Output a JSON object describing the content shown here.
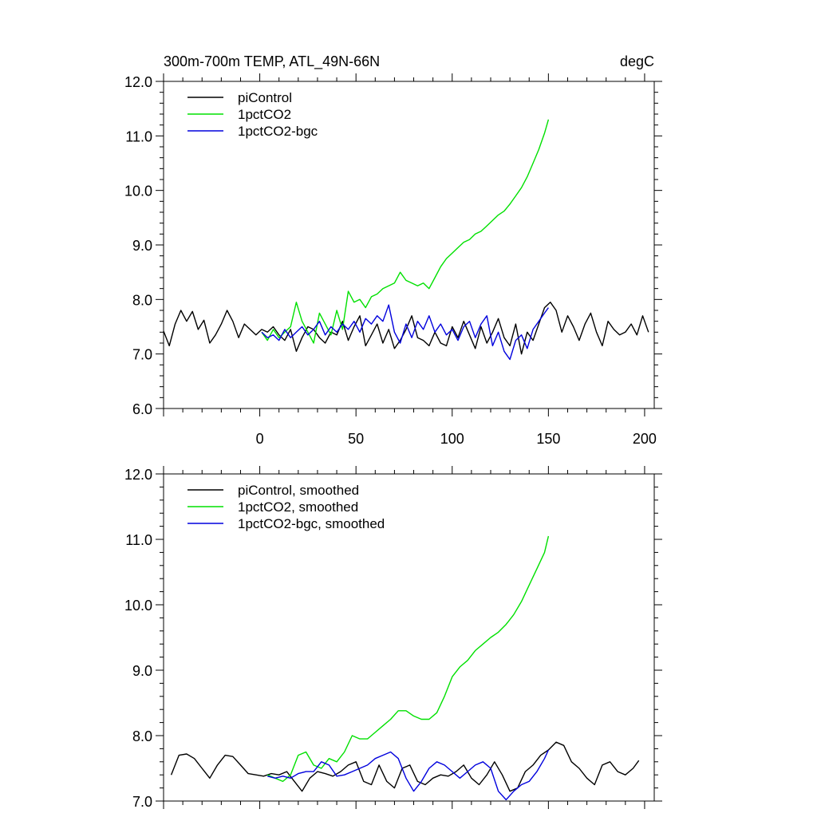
{
  "title_left": "300m-700m TEMP, ATL_49N-66N",
  "title_right": "degC",
  "chart_data": [
    {
      "type": "line",
      "panel": "top",
      "xlim": [
        -50,
        205
      ],
      "ylim": [
        6.0,
        12.0
      ],
      "yticks": [
        "6.0",
        "7.0",
        "8.0",
        "9.0",
        "10.0",
        "11.0",
        "12.0"
      ],
      "xticks": [
        "0",
        "50",
        "100",
        "150",
        "200"
      ],
      "legend_position": "top-left",
      "series": [
        {
          "name": "piControl",
          "color": "#000000",
          "x": [
            -50,
            -47,
            -44,
            -41,
            -38,
            -35,
            -32,
            -29,
            -26,
            -23,
            -20,
            -17,
            -14,
            -11,
            -8,
            -5,
            -2,
            1,
            4,
            7,
            10,
            13,
            16,
            19,
            22,
            25,
            28,
            31,
            34,
            37,
            40,
            43,
            46,
            49,
            52,
            55,
            58,
            61,
            64,
            67,
            70,
            73,
            76,
            79,
            82,
            85,
            88,
            91,
            94,
            97,
            100,
            103,
            106,
            109,
            112,
            115,
            118,
            121,
            124,
            127,
            130,
            133,
            136,
            139,
            142,
            145,
            148,
            151,
            154,
            157,
            160,
            163,
            166,
            169,
            172,
            175,
            178,
            181,
            184,
            187,
            190,
            193,
            196,
            199,
            202
          ],
          "values": [
            7.42,
            7.15,
            7.55,
            7.8,
            7.6,
            7.78,
            7.45,
            7.62,
            7.2,
            7.35,
            7.55,
            7.8,
            7.6,
            7.3,
            7.55,
            7.45,
            7.35,
            7.45,
            7.4,
            7.5,
            7.35,
            7.25,
            7.45,
            7.05,
            7.3,
            7.5,
            7.45,
            7.3,
            7.2,
            7.4,
            7.35,
            7.6,
            7.25,
            7.5,
            7.7,
            7.15,
            7.35,
            7.55,
            7.2,
            7.45,
            7.1,
            7.25,
            7.45,
            7.7,
            7.3,
            7.25,
            7.15,
            7.4,
            7.2,
            7.15,
            7.5,
            7.3,
            7.6,
            7.35,
            7.1,
            7.5,
            7.2,
            7.4,
            7.65,
            7.3,
            7.15,
            7.55,
            7.0,
            7.4,
            7.25,
            7.55,
            7.85,
            7.95,
            7.8,
            7.4,
            7.7,
            7.5,
            7.25,
            7.55,
            7.75,
            7.4,
            7.15,
            7.6,
            7.45,
            7.35,
            7.4,
            7.55,
            7.35,
            7.7,
            7.4
          ]
        },
        {
          "name": "1pctCO2",
          "color": "#00e000",
          "x": [
            1,
            4,
            7,
            10,
            13,
            16,
            19,
            22,
            25,
            28,
            31,
            34,
            37,
            40,
            43,
            46,
            49,
            52,
            55,
            58,
            61,
            64,
            67,
            70,
            73,
            76,
            79,
            82,
            85,
            88,
            91,
            94,
            97,
            100,
            103,
            106,
            109,
            112,
            115,
            118,
            121,
            124,
            127,
            130,
            133,
            136,
            139,
            142,
            145,
            148,
            150
          ],
          "values": [
            7.4,
            7.25,
            7.45,
            7.3,
            7.4,
            7.5,
            7.95,
            7.6,
            7.4,
            7.2,
            7.75,
            7.55,
            7.35,
            7.8,
            7.45,
            8.15,
            7.95,
            8.0,
            7.85,
            8.05,
            8.1,
            8.2,
            8.25,
            8.3,
            8.5,
            8.35,
            8.3,
            8.25,
            8.3,
            8.2,
            8.4,
            8.6,
            8.75,
            8.85,
            8.95,
            9.05,
            9.1,
            9.2,
            9.25,
            9.35,
            9.45,
            9.55,
            9.62,
            9.75,
            9.9,
            10.05,
            10.25,
            10.5,
            10.75,
            11.05,
            11.3
          ]
        },
        {
          "name": "1pctCO2-bgc",
          "color": "#0000dd",
          "x": [
            1,
            4,
            7,
            10,
            13,
            16,
            19,
            22,
            25,
            28,
            31,
            34,
            37,
            40,
            43,
            46,
            49,
            52,
            55,
            58,
            61,
            64,
            67,
            70,
            73,
            76,
            79,
            82,
            85,
            88,
            91,
            94,
            97,
            100,
            103,
            106,
            109,
            112,
            115,
            118,
            121,
            124,
            127,
            130,
            133,
            136,
            139,
            142,
            145,
            148,
            150
          ],
          "values": [
            7.4,
            7.3,
            7.35,
            7.25,
            7.45,
            7.3,
            7.4,
            7.5,
            7.35,
            7.45,
            7.6,
            7.35,
            7.5,
            7.4,
            7.55,
            7.45,
            7.6,
            7.4,
            7.65,
            7.55,
            7.7,
            7.6,
            7.9,
            7.4,
            7.2,
            7.55,
            7.3,
            7.6,
            7.45,
            7.7,
            7.4,
            7.55,
            7.35,
            7.45,
            7.25,
            7.5,
            7.6,
            7.3,
            7.55,
            7.7,
            7.15,
            7.4,
            7.05,
            6.9,
            7.25,
            7.35,
            7.1,
            7.45,
            7.6,
            7.75,
            7.85
          ]
        }
      ]
    },
    {
      "type": "line",
      "panel": "bottom",
      "xlim": [
        -50,
        205
      ],
      "ylim": [
        7.0,
        12.0
      ],
      "yticks": [
        "7.0",
        "8.0",
        "9.0",
        "10.0",
        "11.0",
        "12.0"
      ],
      "legend_position": "top-left",
      "series": [
        {
          "name": "piControl, smoothed",
          "color": "#000000",
          "x": [
            -46,
            -42,
            -38,
            -34,
            -30,
            -26,
            -22,
            -18,
            -14,
            -10,
            -6,
            -2,
            2,
            6,
            10,
            14,
            18,
            22,
            26,
            30,
            34,
            38,
            42,
            46,
            50,
            54,
            58,
            62,
            66,
            70,
            74,
            78,
            82,
            86,
            90,
            94,
            98,
            102,
            106,
            110,
            114,
            118,
            122,
            126,
            130,
            134,
            138,
            142,
            146,
            150,
            154,
            158,
            162,
            166,
            170,
            174,
            178,
            182,
            186,
            190,
            194,
            197
          ],
          "values": [
            7.4,
            7.7,
            7.72,
            7.65,
            7.5,
            7.35,
            7.55,
            7.7,
            7.68,
            7.55,
            7.42,
            7.4,
            7.38,
            7.42,
            7.4,
            7.45,
            7.3,
            7.15,
            7.35,
            7.45,
            7.42,
            7.38,
            7.45,
            7.55,
            7.6,
            7.3,
            7.25,
            7.55,
            7.3,
            7.2,
            7.5,
            7.55,
            7.3,
            7.25,
            7.35,
            7.4,
            7.38,
            7.45,
            7.55,
            7.35,
            7.25,
            7.4,
            7.6,
            7.4,
            7.15,
            7.2,
            7.45,
            7.55,
            7.7,
            7.78,
            7.9,
            7.85,
            7.6,
            7.5,
            7.35,
            7.25,
            7.55,
            7.6,
            7.45,
            7.4,
            7.5,
            7.62
          ]
        },
        {
          "name": "1pctCO2, smoothed",
          "color": "#00e000",
          "x": [
            4,
            8,
            12,
            16,
            20,
            24,
            28,
            32,
            36,
            40,
            44,
            48,
            52,
            56,
            60,
            64,
            68,
            72,
            76,
            80,
            84,
            88,
            92,
            96,
            100,
            104,
            108,
            112,
            116,
            120,
            124,
            128,
            132,
            136,
            140,
            144,
            148,
            150
          ],
          "values": [
            7.4,
            7.35,
            7.3,
            7.4,
            7.7,
            7.75,
            7.55,
            7.5,
            7.65,
            7.6,
            7.75,
            8.0,
            7.95,
            7.95,
            8.05,
            8.15,
            8.25,
            8.38,
            8.38,
            8.3,
            8.25,
            8.25,
            8.35,
            8.6,
            8.9,
            9.05,
            9.15,
            9.3,
            9.4,
            9.5,
            9.58,
            9.7,
            9.85,
            10.05,
            10.3,
            10.55,
            10.8,
            11.05
          ]
        },
        {
          "name": "1pctCO2-bgc, smoothed",
          "color": "#0000dd",
          "x": [
            4,
            8,
            12,
            16,
            20,
            24,
            28,
            32,
            36,
            40,
            44,
            48,
            52,
            56,
            60,
            64,
            68,
            72,
            76,
            80,
            84,
            88,
            92,
            96,
            100,
            104,
            108,
            112,
            116,
            120,
            124,
            128,
            132,
            136,
            140,
            144,
            148,
            150
          ],
          "values": [
            7.38,
            7.35,
            7.38,
            7.35,
            7.42,
            7.45,
            7.45,
            7.6,
            7.55,
            7.38,
            7.4,
            7.45,
            7.5,
            7.55,
            7.65,
            7.7,
            7.75,
            7.65,
            7.35,
            7.15,
            7.3,
            7.5,
            7.6,
            7.55,
            7.45,
            7.35,
            7.45,
            7.55,
            7.6,
            7.5,
            7.15,
            7.02,
            7.15,
            7.25,
            7.3,
            7.45,
            7.65,
            7.78
          ]
        }
      ]
    }
  ]
}
